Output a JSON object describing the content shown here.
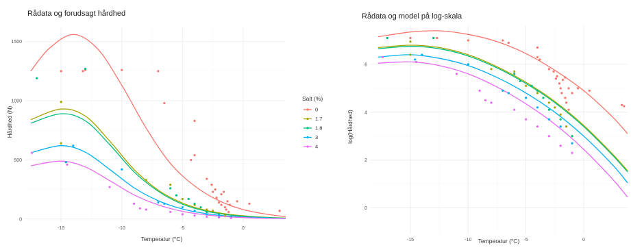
{
  "chart_data": [
    {
      "id": "left",
      "type": "scatter",
      "title": "Rådata og forudsagt hårdhed",
      "xlabel": "Temperatur (°C)",
      "ylabel": "Hårdhed (N)",
      "xlim": [
        -18,
        3.5
      ],
      "ylim": [
        -30,
        1620
      ],
      "xticks": [
        -15,
        -10,
        -5,
        0
      ],
      "yticks": [
        0,
        500,
        1000,
        1500
      ],
      "xtick_labels": [
        "-15",
        "-10",
        "-5",
        "0"
      ],
      "ytick_labels": [
        "0",
        "500",
        "1000",
        "1500"
      ],
      "legend": {
        "title": "Salt (%)",
        "position": "right",
        "entries": [
          "0",
          "1.7",
          "1.8",
          "3",
          "4"
        ]
      },
      "grid": true,
      "series": [
        {
          "name": "0",
          "color": "#F8766D",
          "points": [
            [
              -15,
              1250
            ],
            [
              -13.2,
              1250
            ],
            [
              -13,
              1260
            ],
            [
              -10,
              1260
            ],
            [
              -7,
              1250
            ],
            [
              -6.5,
              980
            ],
            [
              -4,
              830
            ],
            [
              -4,
              540
            ],
            [
              -4.3,
              500
            ],
            [
              -3,
              340
            ],
            [
              -2.6,
              290
            ],
            [
              -2.5,
              230
            ],
            [
              -2.2,
              180
            ],
            [
              -2,
              140
            ],
            [
              -1.8,
              120
            ],
            [
              -1.5,
              100
            ],
            [
              -1.4,
              80
            ],
            [
              -1.2,
              60
            ],
            [
              -1.8,
              210
            ],
            [
              -1.6,
              230
            ],
            [
              -1.3,
              150
            ],
            [
              -2.3,
              250
            ],
            [
              -1.1,
              120
            ],
            [
              -0.5,
              150
            ],
            [
              0.5,
              130
            ],
            [
              3,
              70
            ]
          ],
          "curve": [
            [
              -17.5,
              1250
            ],
            [
              -16,
              1440
            ],
            [
              -14,
              1560
            ],
            [
              -12,
              1440
            ],
            [
              -10,
              1130
            ],
            [
              -8,
              770
            ],
            [
              -6,
              470
            ],
            [
              -4,
              280
            ],
            [
              -2,
              155
            ],
            [
              0,
              80
            ],
            [
              2,
              40
            ],
            [
              3.5,
              20
            ]
          ]
        },
        {
          "name": "1.7",
          "color": "#A3A500",
          "points": [
            [
              -15,
              990
            ],
            [
              -15,
              640
            ],
            [
              -8,
              330
            ],
            [
              -6,
              290
            ],
            [
              -5,
              170
            ],
            [
              -4,
              120
            ],
            [
              -3,
              80
            ],
            [
              -2.5,
              70
            ],
            [
              -2,
              50
            ],
            [
              -1.5,
              30
            ],
            [
              -1,
              20
            ]
          ],
          "curve": [
            [
              -17.5,
              840
            ],
            [
              -15,
              930
            ],
            [
              -13,
              870
            ],
            [
              -11,
              660
            ],
            [
              -9,
              420
            ],
            [
              -7,
              245
            ],
            [
              -5,
              135
            ],
            [
              -3,
              72
            ],
            [
              -1,
              38
            ],
            [
              1,
              20
            ],
            [
              3.5,
              8
            ]
          ]
        },
        {
          "name": "1.8",
          "color": "#00BF7D",
          "points": [
            [
              -17,
              1190
            ],
            [
              -13,
              1270
            ],
            [
              -6,
              260
            ],
            [
              -5.5,
              200
            ],
            [
              -4.5,
              170
            ],
            [
              -4,
              130
            ],
            [
              -3.5,
              100
            ],
            [
              -3,
              60
            ],
            [
              -2,
              40
            ],
            [
              -1,
              20
            ]
          ],
          "curve": [
            [
              -17.5,
              810
            ],
            [
              -15,
              890
            ],
            [
              -13,
              830
            ],
            [
              -11,
              630
            ],
            [
              -9,
              400
            ],
            [
              -7,
              235
            ],
            [
              -5,
              125
            ],
            [
              -3,
              65
            ],
            [
              -1,
              33
            ],
            [
              1,
              17
            ],
            [
              3.5,
              7
            ]
          ]
        },
        {
          "name": "3",
          "color": "#00B0F6",
          "points": [
            [
              -14,
              620
            ],
            [
              -14.6,
              480
            ],
            [
              -10,
              420
            ],
            [
              -7,
              140
            ],
            [
              -6.5,
              130
            ],
            [
              -5,
              100
            ],
            [
              -4,
              70
            ],
            [
              -3,
              40
            ],
            [
              -2,
              30
            ],
            [
              -1,
              15
            ]
          ],
          "curve": [
            [
              -17.5,
              560
            ],
            [
              -15,
              620
            ],
            [
              -13,
              565
            ],
            [
              -11,
              420
            ],
            [
              -9,
              265
            ],
            [
              -7,
              155
            ],
            [
              -5,
              85
            ],
            [
              -3,
              45
            ],
            [
              -1,
              23
            ],
            [
              1,
              12
            ],
            [
              3.5,
              5
            ]
          ]
        },
        {
          "name": "4",
          "color": "#E76BF3",
          "points": [
            [
              -17.4,
              560
            ],
            [
              -14.5,
              460
            ],
            [
              -11,
              270
            ],
            [
              -9,
              130
            ],
            [
              -8.5,
              90
            ],
            [
              -8,
              80
            ],
            [
              -6,
              60
            ],
            [
              -5,
              40
            ],
            [
              -4,
              30
            ],
            [
              -3,
              20
            ],
            [
              -2,
              15
            ],
            [
              -1,
              10
            ]
          ],
          "curve": [
            [
              -17.5,
              450
            ],
            [
              -15,
              490
            ],
            [
              -13,
              440
            ],
            [
              -11,
              325
            ],
            [
              -9,
              205
            ],
            [
              -7,
              120
            ],
            [
              -5,
              65
            ],
            [
              -3,
              35
            ],
            [
              -1,
              18
            ],
            [
              1,
              9
            ],
            [
              3.5,
              4
            ]
          ]
        }
      ]
    },
    {
      "id": "right",
      "type": "scatter",
      "title": "Rådata og model på log-skala",
      "xlabel": "Temperatur (°C)",
      "ylabel": "log(Hårdhed)",
      "xlim": [
        -18.5,
        3.8
      ],
      "ylim": [
        -1.1,
        7.6
      ],
      "xticks": [
        -15,
        -10,
        -5,
        0
      ],
      "yticks": [
        0,
        2,
        4,
        6
      ],
      "xtick_labels": [
        "-15",
        "-10",
        "-5",
        "0"
      ],
      "ytick_labels": [
        "0",
        "2",
        "4",
        "6"
      ],
      "grid": true,
      "series": [
        {
          "name": "0",
          "color": "#F8766D",
          "points": [
            [
              -15,
              7.1
            ],
            [
              -13,
              7.1
            ],
            [
              -12.7,
              7.1
            ],
            [
              -10,
              7.0
            ],
            [
              -7,
              7.0
            ],
            [
              -6.5,
              6.9
            ],
            [
              -4,
              6.7
            ],
            [
              -4,
              6.3
            ],
            [
              -3.8,
              6.2
            ],
            [
              -3,
              5.8
            ],
            [
              -2.6,
              5.7
            ],
            [
              -2.4,
              5.4
            ],
            [
              -2.1,
              5.2
            ],
            [
              -2,
              5.0
            ],
            [
              -1.9,
              4.8
            ],
            [
              -1.6,
              4.6
            ],
            [
              -1.5,
              4.4
            ],
            [
              -1.3,
              4.1
            ],
            [
              -1.8,
              5.35
            ],
            [
              -1.6,
              5.45
            ],
            [
              -1.3,
              5.0
            ],
            [
              -2.3,
              5.5
            ],
            [
              -1.0,
              4.8
            ],
            [
              -0.5,
              5.0
            ],
            [
              0.5,
              4.9
            ],
            [
              3.3,
              4.3
            ],
            [
              3.5,
              4.25
            ]
          ],
          "curve": [
            [
              -17.8,
              7.15
            ],
            [
              -15,
              7.35
            ],
            [
              -12.5,
              7.4
            ],
            [
              -10,
              7.25
            ],
            [
              -7.5,
              6.95
            ],
            [
              -5,
              6.45
            ],
            [
              -2.5,
              5.75
            ],
            [
              0,
              4.9
            ],
            [
              2.5,
              3.8
            ],
            [
              3.8,
              3.1
            ]
          ]
        },
        {
          "name": "1.7",
          "color": "#A3A500",
          "points": [
            [
              -15,
              6.95
            ],
            [
              -15,
              6.4
            ],
            [
              -8,
              5.8
            ],
            [
              -6,
              5.7
            ],
            [
              -5,
              5.1
            ],
            [
              -4,
              4.8
            ],
            [
              -3,
              4.4
            ],
            [
              -2.5,
              4.2
            ],
            [
              -2,
              3.9
            ],
            [
              -1.5,
              3.4
            ],
            [
              -1,
              3.0
            ]
          ],
          "curve": [
            [
              -17.8,
              6.7
            ],
            [
              -15,
              6.8
            ],
            [
              -12.5,
              6.7
            ],
            [
              -10,
              6.4
            ],
            [
              -7.5,
              5.9
            ],
            [
              -5,
              5.25
            ],
            [
              -2.5,
              4.45
            ],
            [
              0,
              3.45
            ],
            [
              2.5,
              2.25
            ],
            [
              3.8,
              1.55
            ]
          ]
        },
        {
          "name": "1.8",
          "color": "#00BF7D",
          "points": [
            [
              -17,
              7.1
            ],
            [
              -13,
              7.1
            ],
            [
              -6,
              5.6
            ],
            [
              -5.5,
              5.3
            ],
            [
              -4.5,
              5.1
            ],
            [
              -4,
              4.9
            ],
            [
              -3.5,
              4.6
            ],
            [
              -3,
              4.1
            ],
            [
              -2,
              3.7
            ],
            [
              -1,
              3.0
            ]
          ],
          "curve": [
            [
              -17.8,
              6.65
            ],
            [
              -15,
              6.75
            ],
            [
              -12.5,
              6.65
            ],
            [
              -10,
              6.35
            ],
            [
              -7.5,
              5.85
            ],
            [
              -5,
              5.2
            ],
            [
              -2.5,
              4.4
            ],
            [
              0,
              3.4
            ],
            [
              2.5,
              2.2
            ],
            [
              3.8,
              1.5
            ]
          ]
        },
        {
          "name": "3",
          "color": "#00B0F6",
          "points": [
            [
              -14,
              6.4
            ],
            [
              -14.6,
              6.2
            ],
            [
              -10,
              6.0
            ],
            [
              -7,
              4.9
            ],
            [
              -6.5,
              4.8
            ],
            [
              -5,
              4.6
            ],
            [
              -4,
              4.2
            ],
            [
              -3,
              3.7
            ],
            [
              -2,
              3.4
            ],
            [
              -1,
              2.7
            ]
          ],
          "curve": [
            [
              -17.8,
              6.3
            ],
            [
              -15,
              6.4
            ],
            [
              -12.5,
              6.25
            ],
            [
              -10,
              5.95
            ],
            [
              -7.5,
              5.45
            ],
            [
              -5,
              4.8
            ],
            [
              -2.5,
              4.0
            ],
            [
              0,
              3.0
            ],
            [
              2.5,
              1.8
            ],
            [
              3.8,
              1.05
            ]
          ]
        },
        {
          "name": "4",
          "color": "#E76BF3",
          "points": [
            [
              -17.4,
              6.3
            ],
            [
              -14.5,
              6.1
            ],
            [
              -11,
              5.6
            ],
            [
              -9,
              4.9
            ],
            [
              -8.5,
              4.5
            ],
            [
              -8,
              4.4
            ],
            [
              -6,
              4.1
            ],
            [
              -5,
              3.7
            ],
            [
              -4,
              3.4
            ],
            [
              -3,
              3.0
            ],
            [
              -2,
              2.6
            ],
            [
              -1,
              2.3
            ]
          ],
          "curve": [
            [
              -17.8,
              6.05
            ],
            [
              -15,
              6.1
            ],
            [
              -12.5,
              5.95
            ],
            [
              -10,
              5.6
            ],
            [
              -7.5,
              5.05
            ],
            [
              -5,
              4.35
            ],
            [
              -2.5,
              3.5
            ],
            [
              0,
              2.45
            ],
            [
              2.5,
              1.2
            ],
            [
              3.8,
              0.45
            ]
          ]
        }
      ]
    }
  ]
}
